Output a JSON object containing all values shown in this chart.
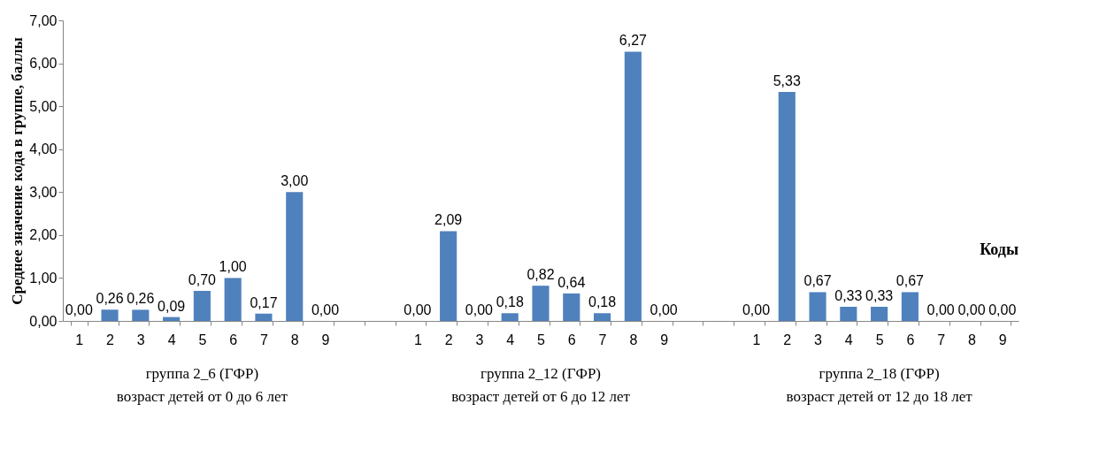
{
  "chart_data": {
    "type": "bar",
    "ylabel": "Среднее значение кода в группе, баллы",
    "categories": [
      "1",
      "2",
      "3",
      "4",
      "5",
      "6",
      "7",
      "8",
      "9",
      null,
      null,
      "1",
      "2",
      "3",
      "4",
      "5",
      "6",
      "7",
      "8",
      "9",
      null,
      null,
      "1",
      "2",
      "3",
      "4",
      "5",
      "6",
      "7",
      "8",
      "9"
    ],
    "series": [
      {
        "color": "#4f81bd",
        "values": [
          0.0,
          0.26,
          0.26,
          0.09,
          0.7,
          1.0,
          0.17,
          3.0,
          0.0,
          null,
          null,
          0.0,
          2.09,
          0.0,
          0.18,
          0.82,
          0.64,
          0.18,
          6.27,
          0.0,
          null,
          null,
          0.0,
          5.33,
          0.67,
          0.33,
          0.33,
          0.67,
          0.0,
          0.0,
          0.0
        ],
        "value_labels": [
          "0,00",
          "0,26",
          "0,26",
          "0,09",
          "0,70",
          "1,00",
          "0,17",
          "3,00",
          "0,00",
          null,
          null,
          "0,00",
          "2,09",
          "0,00",
          "0,18",
          "0,82",
          "0,64",
          "0,18",
          "6,27",
          "0,00",
          null,
          null,
          "0,00",
          "5,33",
          "0,67",
          "0,33",
          "0,33",
          "0,67",
          "0,00",
          "0,00",
          "0,00"
        ]
      }
    ],
    "ylim": [
      0,
      7
    ],
    "yticks": [
      {
        "value": 0,
        "label": "0,00"
      },
      {
        "value": 1,
        "label": "1,00"
      },
      {
        "value": 2,
        "label": "2,00"
      },
      {
        "value": 3,
        "label": "3,00"
      },
      {
        "value": 4,
        "label": "4,00"
      },
      {
        "value": 5,
        "label": "5,00"
      },
      {
        "value": 6,
        "label": "6,00"
      },
      {
        "value": 7,
        "label": "7,00"
      }
    ],
    "grid": false,
    "annotations": [
      "группа  2_6 (ГФР)\nвозраст детей от 0 до 6 лет",
      "группа  2_12 (ГФР)\nвозраст детей от 6 до 12 лет",
      "группа  2_18 (ГФР)\nвозраст детей от 12 до 18 лет",
      "Коды"
    ]
  }
}
